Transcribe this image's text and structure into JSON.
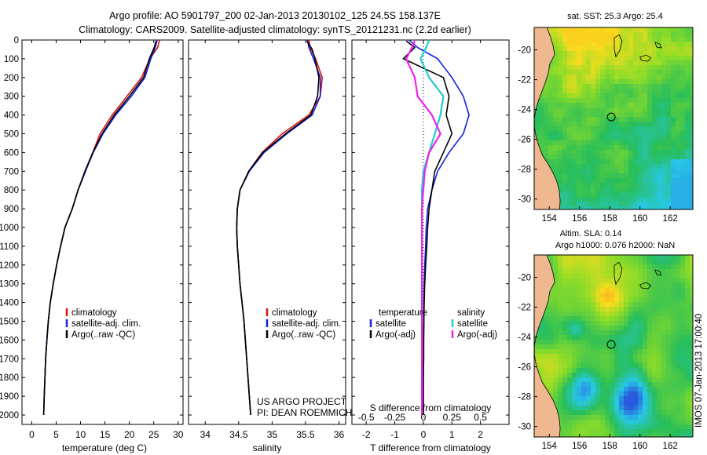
{
  "header": {
    "line1": "Argo profile: AO 5901797_200 02-Jan-2013 20130102_125 24.5S 158.137E",
    "line2": "Climatology: CARS2009. Satellite-adjusted climatology: synTS_20121231.nc (2.2d earlier)"
  },
  "colors": {
    "clim": "#dd1111",
    "sat": "#1122dd",
    "argo": "#000000",
    "sal_sat": "#22cccc",
    "sal_argo": "#ee22ee"
  },
  "depth_ticks": [
    0,
    100,
    200,
    300,
    400,
    500,
    600,
    700,
    800,
    900,
    1000,
    1100,
    1200,
    1300,
    1400,
    1500,
    1600,
    1700,
    1800,
    1900,
    2000
  ],
  "chart_data": [
    {
      "type": "line",
      "xlabel": "temperature (deg C)",
      "xlim": [
        -2,
        31
      ],
      "ylim": [
        2050,
        0
      ],
      "xticks": [
        0,
        5,
        10,
        15,
        20,
        25,
        30
      ],
      "legend": [
        "climatology",
        "satellite-adj. clim.",
        "Argo(..raw -QC)"
      ],
      "series": [
        {
          "name": "climatology",
          "color_key": "clim",
          "x": [
            26.2,
            25.8,
            24.2,
            22.5,
            19.5,
            16.5,
            14.0,
            12.5,
            11.0,
            9.5,
            8.3,
            6.8,
            5.9,
            5.1,
            4.4,
            3.8,
            3.4,
            3.1,
            2.85,
            2.7,
            2.55,
            2.45
          ],
          "y": [
            0,
            40,
            100,
            200,
            300,
            400,
            500,
            600,
            700,
            800,
            900,
            1000,
            1100,
            1200,
            1300,
            1400,
            1500,
            1600,
            1700,
            1800,
            1900,
            2000
          ]
        },
        {
          "name": "satellite-adj. clim.",
          "color_key": "sat",
          "x": [
            25.7,
            25.3,
            24.4,
            23.2,
            20.4,
            17.2,
            14.6,
            12.6,
            11.0,
            9.5,
            8.3,
            6.8,
            5.9,
            5.1,
            4.4,
            3.8,
            3.4,
            3.1,
            2.85,
            2.7,
            2.55,
            2.45
          ],
          "y": [
            0,
            40,
            100,
            200,
            300,
            400,
            500,
            600,
            700,
            800,
            900,
            1000,
            1100,
            1200,
            1300,
            1400,
            1500,
            1600,
            1700,
            1800,
            1900,
            2000
          ]
        },
        {
          "name": "Argo(..raw -QC)",
          "color_key": "argo",
          "x": [
            25.5,
            25.1,
            24.1,
            22.9,
            20.0,
            16.9,
            14.4,
            12.5,
            10.9,
            9.5,
            8.3,
            6.8,
            5.9,
            5.1,
            4.4,
            3.8,
            3.4,
            3.1,
            2.85,
            2.7,
            2.55,
            2.45
          ],
          "y": [
            5,
            40,
            100,
            200,
            300,
            400,
            500,
            600,
            700,
            800,
            900,
            1000,
            1100,
            1200,
            1300,
            1400,
            1500,
            1600,
            1700,
            1800,
            1900,
            2000
          ]
        }
      ]
    },
    {
      "type": "line",
      "xlabel": "salinity",
      "xlim": [
        33.75,
        36.1
      ],
      "ylim": [
        2050,
        0
      ],
      "xticks": [
        34,
        34.5,
        35,
        35.5,
        36
      ],
      "legend": [
        "climatology",
        "satellite-adj. clim.",
        "Argo(..raw -QC)"
      ],
      "annotation": [
        "US ARGO PROJECT",
        "PI: DEAN ROEMMICH"
      ],
      "series": [
        {
          "name": "climatology",
          "color_key": "clim",
          "x": [
            35.55,
            35.57,
            35.65,
            35.75,
            35.72,
            35.55,
            35.15,
            34.85,
            34.65,
            34.52,
            34.48,
            34.47,
            34.48,
            34.5,
            34.52,
            34.55,
            34.58,
            34.6,
            34.62,
            34.64,
            34.66,
            34.68
          ],
          "y": [
            0,
            40,
            100,
            200,
            300,
            400,
            500,
            600,
            700,
            800,
            900,
            1000,
            1100,
            1200,
            1300,
            1400,
            1500,
            1600,
            1700,
            1800,
            1900,
            2000
          ]
        },
        {
          "name": "satellite-adj. clim.",
          "color_key": "sat",
          "x": [
            35.53,
            35.55,
            35.62,
            35.72,
            35.72,
            35.6,
            35.22,
            34.88,
            34.66,
            34.52,
            34.48,
            34.47,
            34.48,
            34.5,
            34.52,
            34.55,
            34.58,
            34.6,
            34.62,
            34.64,
            34.66,
            34.68
          ],
          "y": [
            0,
            40,
            100,
            200,
            300,
            400,
            500,
            600,
            700,
            800,
            900,
            1000,
            1100,
            1200,
            1300,
            1400,
            1500,
            1600,
            1700,
            1800,
            1900,
            2000
          ]
        },
        {
          "name": "Argo(..raw -QC)",
          "color_key": "argo",
          "x": [
            35.52,
            35.6,
            35.64,
            35.7,
            35.68,
            35.58,
            35.2,
            34.86,
            34.65,
            34.52,
            34.48,
            34.47,
            34.48,
            34.5,
            34.52,
            34.55,
            34.58,
            34.6,
            34.62,
            34.64,
            34.66,
            34.68
          ],
          "y": [
            5,
            50,
            100,
            200,
            300,
            400,
            500,
            600,
            700,
            800,
            900,
            1000,
            1100,
            1200,
            1300,
            1400,
            1500,
            1600,
            1700,
            1800,
            1900,
            2000
          ]
        }
      ]
    },
    {
      "type": "line",
      "xlabel": "T difference from climatology",
      "xlabel2": "S difference from climatology",
      "xlim": [
        -2.5,
        3
      ],
      "ylim": [
        2050,
        0
      ],
      "xticks": [
        -2,
        -1,
        0,
        1,
        2
      ],
      "xticks2": [
        -0.5,
        -0.25,
        0,
        0.25,
        0.5
      ],
      "xticks2_pos": [
        -2,
        -1,
        0,
        1,
        2
      ],
      "legend_temperature": [
        "temperature",
        "satellite",
        "Argo(-adj)"
      ],
      "legend_salinity": [
        "salinity",
        "satellite",
        "Argo(-adj)"
      ],
      "series": [
        {
          "name": "satellite",
          "color_key": "sat",
          "x": [
            -0.5,
            -0.2,
            0.5,
            1.0,
            1.4,
            1.6,
            1.4,
            0.9,
            0.5,
            0.3,
            0.15,
            0.1,
            0.08,
            0.05,
            0.03,
            0.02,
            0.02,
            0.01,
            0.01,
            0.0,
            0.0
          ],
          "y": [
            0,
            40,
            100,
            200,
            300,
            400,
            500,
            600,
            700,
            800,
            900,
            1000,
            1100,
            1200,
            1300,
            1400,
            1500,
            1600,
            1700,
            1800,
            2000
          ]
        },
        {
          "name": "Argo(-adj)",
          "color_key": "argo",
          "x": [
            -0.6,
            -0.3,
            -0.7,
            0.7,
            0.9,
            0.8,
            1.0,
            0.7,
            0.4,
            0.3,
            0.2,
            0.15,
            0.12,
            0.08,
            0.05,
            0.03,
            0.02,
            0.01,
            0.01,
            0.0,
            0.0
          ],
          "y": [
            5,
            40,
            100,
            200,
            300,
            400,
            500,
            600,
            700,
            800,
            900,
            1000,
            1100,
            1200,
            1300,
            1400,
            1500,
            1600,
            1700,
            1800,
            2000
          ]
        },
        {
          "name": "satellite",
          "color_key": "sal_sat",
          "x": [
            0.2,
            0.1,
            -0.1,
            0.2,
            0.7,
            0.6,
            0.4,
            0.2,
            0.0,
            -0.05,
            -0.05,
            -0.05,
            -0.05,
            -0.05,
            -0.05,
            -0.05,
            -0.05,
            -0.05,
            -0.05,
            -0.05,
            -0.05
          ],
          "y": [
            0,
            40,
            100,
            200,
            300,
            400,
            500,
            600,
            700,
            800,
            900,
            1000,
            1100,
            1200,
            1300,
            1400,
            1500,
            1600,
            1700,
            1800,
            2000
          ]
        },
        {
          "name": "Argo(-adj)",
          "color_key": "sal_argo",
          "x": [
            -0.3,
            -0.4,
            -0.6,
            -0.3,
            -0.2,
            0.3,
            0.6,
            0.2,
            0.05,
            0.0,
            -0.05,
            -0.05,
            -0.05,
            -0.05,
            -0.05,
            -0.05,
            -0.05,
            -0.05,
            -0.05,
            -0.05,
            -0.05
          ],
          "y": [
            5,
            40,
            100,
            200,
            300,
            400,
            500,
            600,
            700,
            800,
            900,
            1000,
            1100,
            1200,
            1300,
            1400,
            1500,
            1600,
            1700,
            1800,
            2000
          ]
        }
      ]
    },
    {
      "type": "heatmap",
      "title": "sat. SST: 25.3  Argo: 25.4",
      "xticks": [
        154,
        156,
        158,
        160,
        162
      ],
      "yticks": [
        -20,
        -22,
        -24,
        -26,
        -28,
        -30
      ],
      "lon_range": [
        153,
        163.5
      ],
      "lat_range": [
        -30.7,
        -18.5
      ],
      "marker": {
        "lon": 158.1,
        "lat": -24.5
      }
    },
    {
      "type": "heatmap",
      "title1": "Altim. SLA: 0.14",
      "title2": "Argo h1000: 0.076 h2000: NaN",
      "xticks": [
        154,
        156,
        158,
        160,
        162
      ],
      "yticks": [
        -20,
        -22,
        -24,
        -26,
        -28,
        -30
      ],
      "lon_range": [
        153,
        163.5
      ],
      "lat_range": [
        -30.7,
        -18.5
      ],
      "marker": {
        "lon": 158.1,
        "lat": -24.5
      }
    }
  ],
  "side_label": "IMOS 07-Jan-2013 17:00:40"
}
